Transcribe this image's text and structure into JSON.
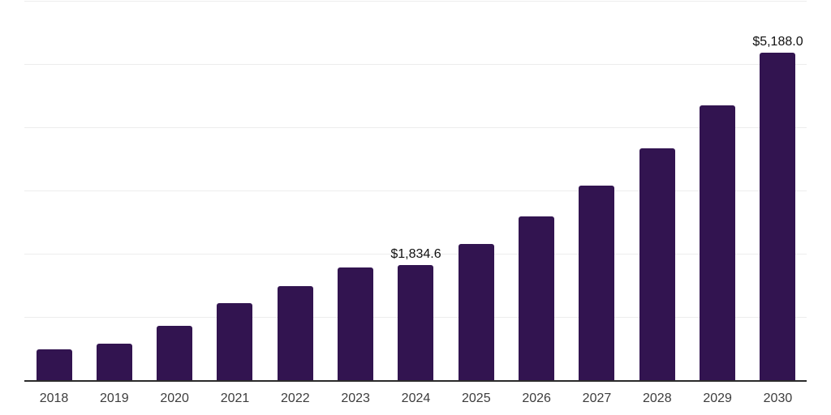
{
  "chart_data": {
    "type": "bar",
    "title": "",
    "xlabel": "",
    "ylabel": "",
    "categories": [
      "2018",
      "2019",
      "2020",
      "2021",
      "2022",
      "2023",
      "2024",
      "2025",
      "2026",
      "2027",
      "2028",
      "2029",
      "2030"
    ],
    "values": [
      505,
      595,
      875,
      1225,
      1500,
      1795,
      1834.6,
      2165,
      2600,
      3085,
      3675,
      4365,
      5188
    ],
    "annotations": [
      {
        "category": "2024",
        "text": "$1,834.6"
      },
      {
        "category": "2030",
        "text": "$5,188.0"
      }
    ],
    "ylim": [
      0,
      6000
    ],
    "gridline_step": 1000,
    "grid": "horizontal-only",
    "y_axis_tick_labels_visible": false,
    "legend_position": "none",
    "colors": {
      "bar": "#321450",
      "axis_line": "#2b2b2b",
      "gridline": "#ededed",
      "tick_label": "#3d3d3d",
      "data_label": "#111111",
      "background": "#ffffff"
    }
  }
}
